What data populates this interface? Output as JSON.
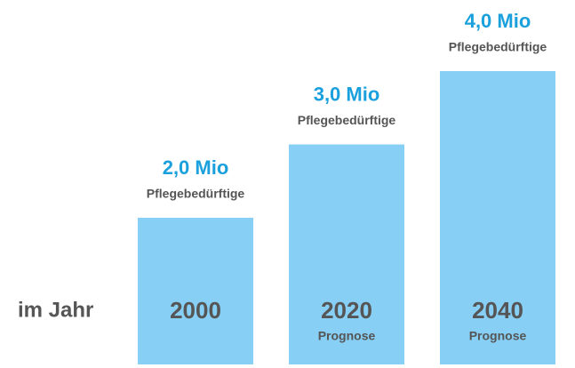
{
  "chart_data": {
    "type": "bar",
    "x_label": "im Jahr",
    "categories": [
      "2000",
      "2020",
      "2040"
    ],
    "category_notes": [
      null,
      "Prognose",
      "Prognose"
    ],
    "values": [
      2.0,
      3.0,
      4.0
    ],
    "value_labels": [
      "2,0 Mio",
      "3,0 Mio",
      "4,0 Mio"
    ],
    "value_notes": [
      "Pflegebedürftige",
      "Pflegebedürftige",
      "Pflegebedürftige"
    ],
    "color": "#87cff5",
    "label_color": "#1aa0dc"
  }
}
